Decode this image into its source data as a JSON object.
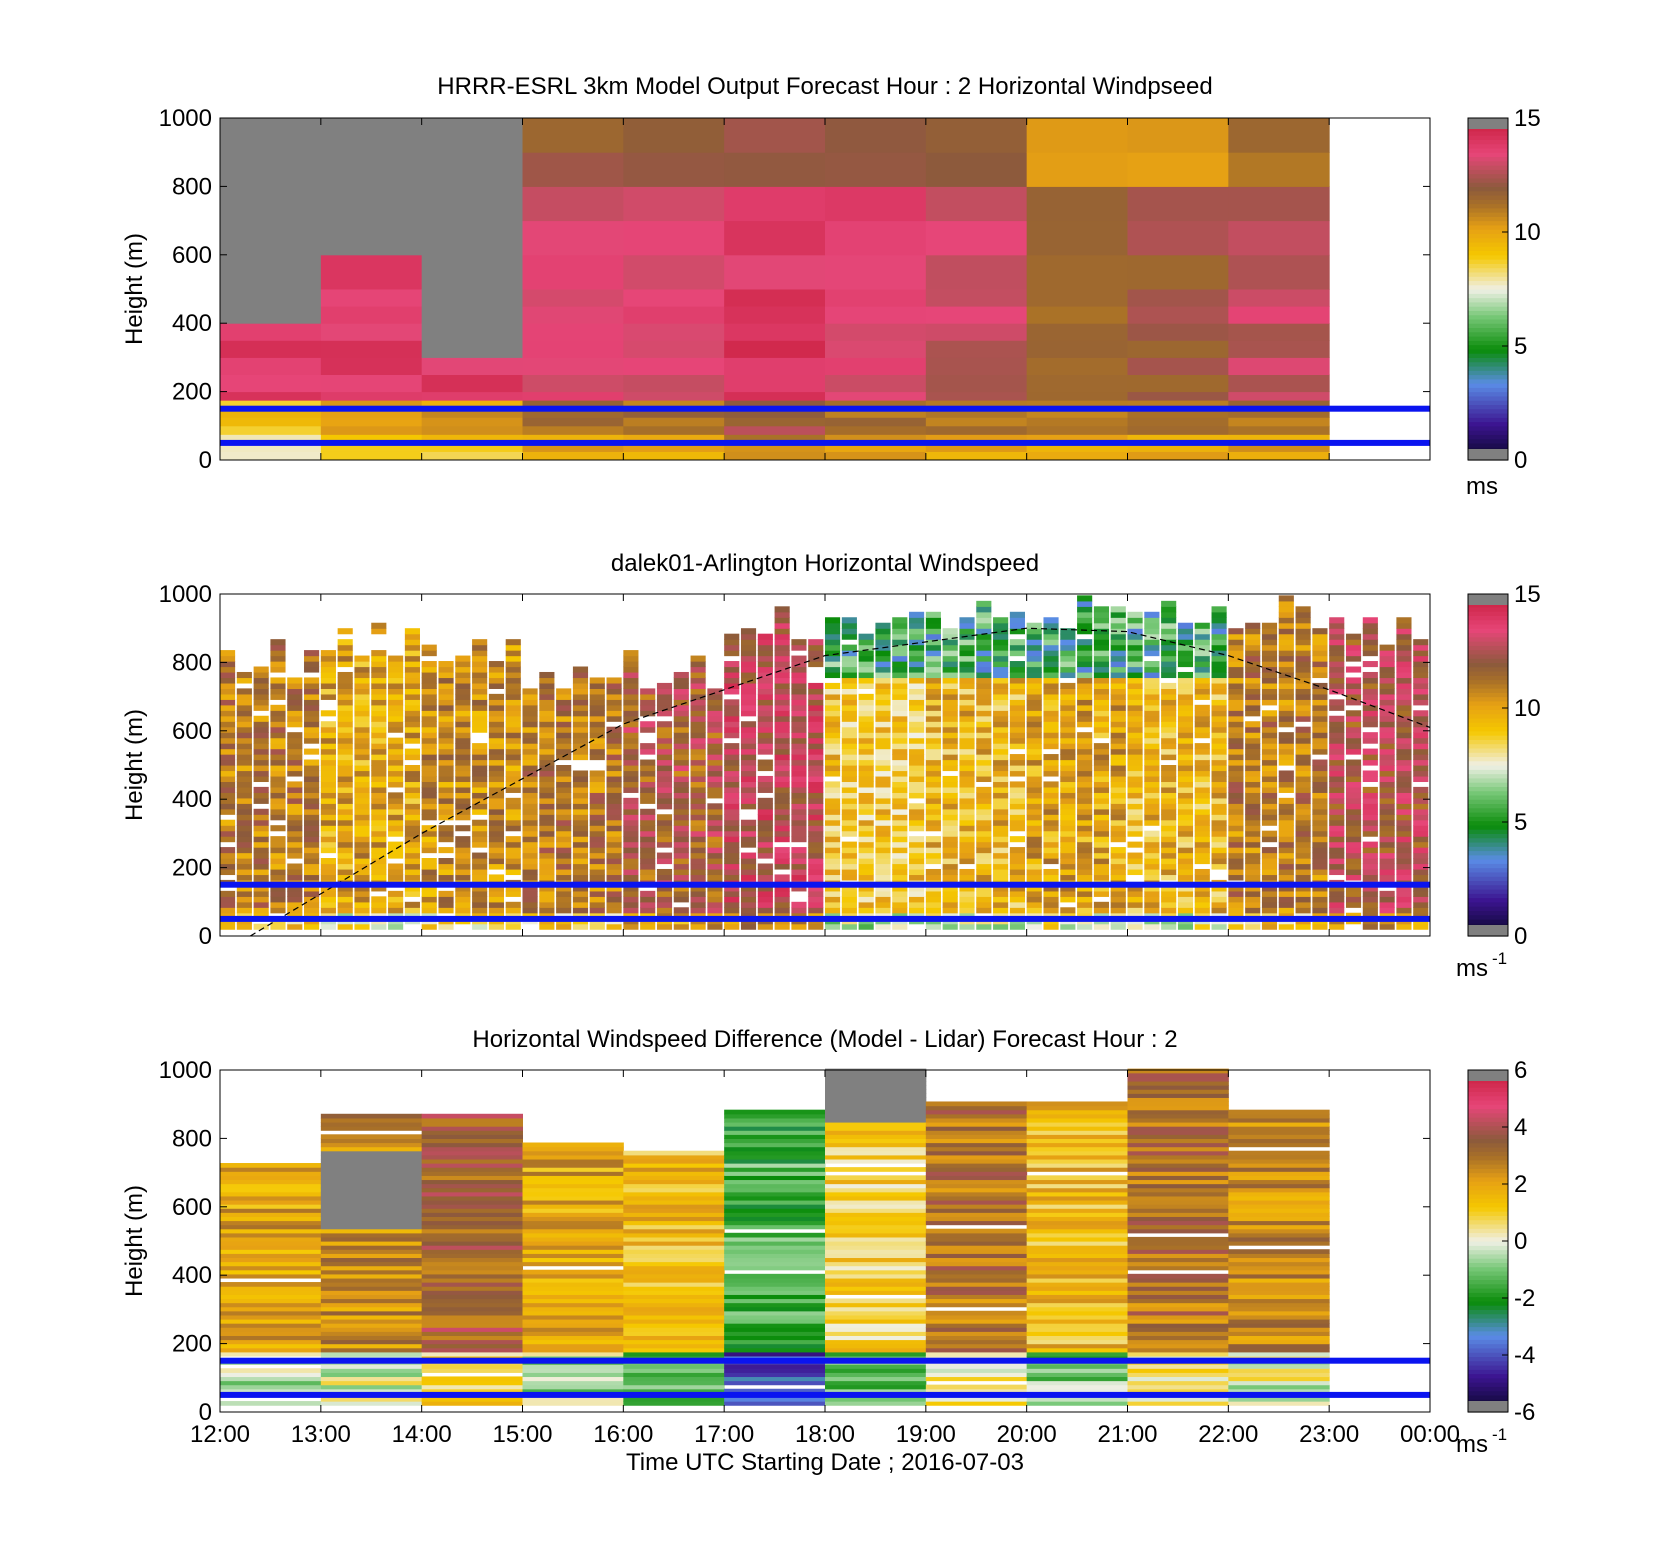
{
  "colors": {
    "overlay_line": "#0a14f0",
    "missing": "#808080",
    "colormap": [
      "#2a2a2a",
      "#140a40",
      "#3c1490",
      "#5a8ce6",
      "#0a8c0a",
      "#78c878",
      "#f0f0e6",
      "#f5c800",
      "#e6a014",
      "#a87028",
      "#8c5a3c",
      "#e64678",
      "#c81e3c"
    ]
  },
  "common": {
    "ylabel": "Height (m)",
    "yticks": [
      "0",
      "200",
      "400",
      "600",
      "800",
      "1000"
    ],
    "xticks": [
      "12:00",
      "13:00",
      "14:00",
      "15:00",
      "16:00",
      "17:00",
      "18:00",
      "19:00",
      "20:00",
      "21:00",
      "22:00",
      "23:00",
      "00:00"
    ],
    "xlabel": "Time UTC  Starting Date ; 2016-07-03"
  },
  "chart_data": [
    {
      "type": "heatmap",
      "title": "HRRR-ESRL 3km Model Output   Forecast Hour : 2 Horizontal Windpseed",
      "ylabel": "Height (m)",
      "ylim": [
        0,
        1000
      ],
      "x": [
        "12:00",
        "13:00",
        "14:00",
        "15:00",
        "16:00",
        "17:00",
        "18:00",
        "19:00",
        "20:00",
        "21:00",
        "22:00",
        "23:00",
        "00:00"
      ],
      "colorbar": {
        "ticks": [
          "0",
          "5",
          "10",
          "15"
        ],
        "range": [
          0,
          15
        ],
        "unit": "ms"
      },
      "overlay_lines_m": [
        50,
        150
      ],
      "approx_columns": [
        {
          "hour": "12:00",
          "top_m": 400,
          "low_m_speed": 8,
          "mid_speed": 14
        },
        {
          "hour": "13:00",
          "top_m": 600,
          "low_m_speed": 9,
          "mid_speed": 14
        },
        {
          "hour": "14:00",
          "top_m": 300,
          "low_m_speed": 9,
          "mid_speed": 14
        },
        {
          "hour": "15:00",
          "top_m": 1000,
          "low_m_speed": 10,
          "mid_speed": 13.5
        },
        {
          "hour": "16:00",
          "top_m": 1000,
          "low_m_speed": 10,
          "mid_speed": 13.5
        },
        {
          "hour": "17:00",
          "top_m": 1000,
          "low_m_speed": 11,
          "mid_speed": 14
        },
        {
          "hour": "18:00",
          "top_m": 1000,
          "low_m_speed": 10,
          "mid_speed": 13.5
        },
        {
          "hour": "19:00",
          "top_m": 1000,
          "low_m_speed": 10,
          "mid_speed": 13
        },
        {
          "hour": "20:00",
          "top_m": 1000,
          "low_m_speed": 10,
          "mid_speed": 11.5
        },
        {
          "hour": "21:00",
          "top_m": 1000,
          "low_m_speed": 10,
          "mid_speed": 12
        },
        {
          "hour": "22:00",
          "top_m": 1000,
          "low_m_speed": 10,
          "mid_speed": 13
        }
      ]
    },
    {
      "type": "heatmap",
      "title": "dalek01-Arlington  Horizontal Windspeed",
      "ylabel": "Height (m)",
      "ylim": [
        0,
        1000
      ],
      "x": [
        "12:00",
        "13:00",
        "14:00",
        "15:00",
        "16:00",
        "17:00",
        "18:00",
        "19:00",
        "20:00",
        "21:00",
        "22:00",
        "23:00",
        "00:00"
      ],
      "colorbar": {
        "ticks": [
          "0",
          "5",
          "10",
          "15"
        ],
        "range": [
          0,
          15
        ],
        "unit": "ms",
        "unit_exp": "-1"
      },
      "overlay_lines_m": [
        50,
        150
      ],
      "boundary_layer_curve": {
        "style": "dashed",
        "points_hour_m": [
          [
            12.3,
            0
          ],
          [
            14,
            300
          ],
          [
            16,
            620
          ],
          [
            18,
            820
          ],
          [
            20,
            900
          ],
          [
            21,
            890
          ],
          [
            22,
            820
          ],
          [
            23,
            720
          ],
          [
            24,
            610
          ]
        ]
      },
      "approx_columns": {
        "hours": [
          12,
          13,
          14,
          15,
          16,
          17,
          18,
          19,
          20,
          21,
          22,
          23
        ],
        "top_m": [
          860,
          930,
          900,
          790,
          830,
          970,
          1000,
          1000,
          1000,
          1000,
          1000,
          940
        ],
        "mean_speed": [
          11,
          10,
          10.5,
          11,
          12,
          13,
          9,
          9.5,
          10,
          9.5,
          11,
          12.5
        ]
      }
    },
    {
      "type": "heatmap",
      "title": "Horizontal Windspeed Difference (Model - Lidar) Forecast Hour : 2",
      "ylabel": "Height (m)",
      "xlabel": "Time UTC  Starting Date ; 2016-07-03",
      "ylim": [
        0,
        1000
      ],
      "x": [
        "12:00",
        "13:00",
        "14:00",
        "15:00",
        "16:00",
        "17:00",
        "18:00",
        "19:00",
        "20:00",
        "21:00",
        "22:00",
        "23:00",
        "00:00"
      ],
      "colorbar": {
        "ticks": [
          "-6",
          "-4",
          "-2",
          "0",
          "2",
          "4",
          "6"
        ],
        "range": [
          -6,
          6
        ],
        "unit": "ms",
        "unit_exp": "-1"
      },
      "overlay_lines_m": [
        50,
        150
      ],
      "approx_columns": [
        {
          "hour": "12:00",
          "top_m": 720,
          "mean_diff": 2
        },
        {
          "hour": "13:00",
          "top_m": 870,
          "mean_diff": 2.5
        },
        {
          "hour": "14:00",
          "top_m": 870,
          "mean_diff": 3.5
        },
        {
          "hour": "15:00",
          "top_m": 790,
          "mean_diff": 2
        },
        {
          "hour": "16:00",
          "top_m": 760,
          "mean_diff": 1.5
        },
        {
          "hour": "17:00",
          "top_m": 880,
          "mean_diff": -1.5
        },
        {
          "hour": "18:00",
          "top_m": 1000,
          "mean_diff": 1
        },
        {
          "hour": "19:00",
          "top_m": 900,
          "mean_diff": 3
        },
        {
          "hour": "20:00",
          "top_m": 900,
          "mean_diff": 1.5
        },
        {
          "hour": "21:00",
          "top_m": 1000,
          "mean_diff": 3
        },
        {
          "hour": "22:00",
          "top_m": 880,
          "mean_diff": 2.5
        }
      ]
    }
  ]
}
